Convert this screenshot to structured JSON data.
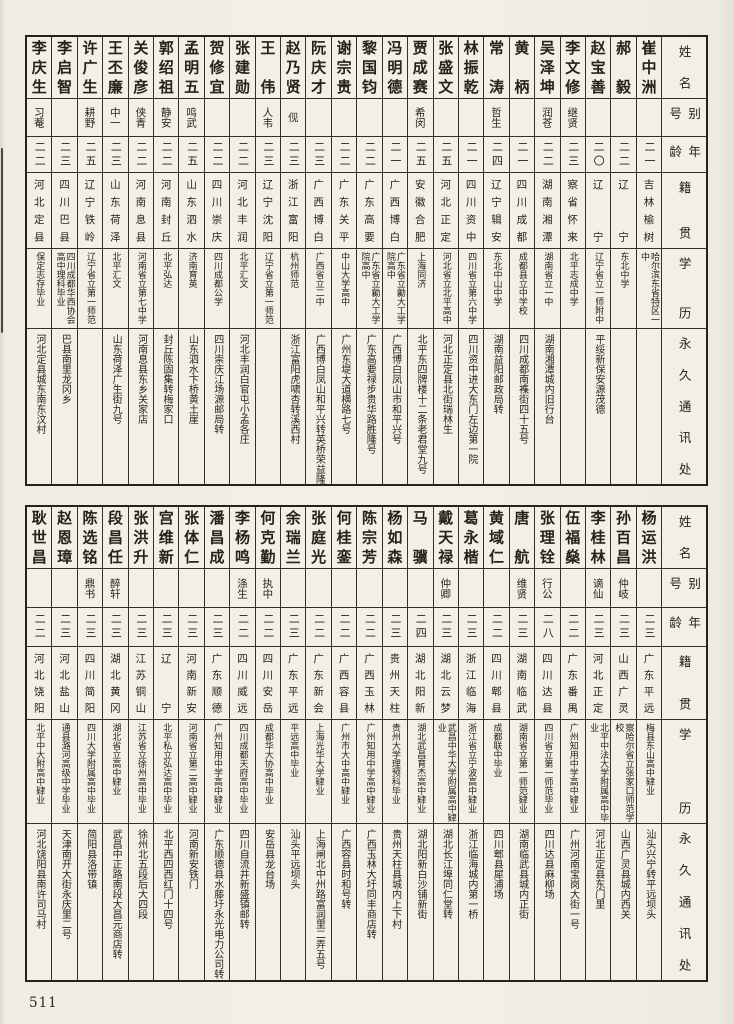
{
  "page": {
    "number": "511"
  },
  "row_labels": [
    "姓名",
    "别号",
    "年龄",
    "籍贯",
    "学历",
    "永久通讯处"
  ],
  "tables": [
    {
      "people": [
        {
          "name": "李庆生",
          "alias": "习菴",
          "age": "二二",
          "native": "河北定县",
          "education": "保定志存毕业",
          "address": "河北定县城东南东汶村"
        },
        {
          "name": "李启智",
          "alias": "",
          "age": "二三",
          "native": "四川巴县",
          "education": "四川成都华西协会高中理科毕业",
          "address": "巴县南里龙冈乡"
        },
        {
          "name": "许广生",
          "alias": "耕野",
          "age": "二五",
          "native": "辽宁铁岭",
          "education": "辽宁省立第一师范",
          "address": ""
        },
        {
          "name": "王丕廉",
          "alias": "中一",
          "age": "二三",
          "native": "山东荷泽",
          "education": "北平汇文",
          "address": "山东荷泽广生街九号"
        },
        {
          "name": "关俊彦",
          "alias": "侠青",
          "age": "二二",
          "native": "河南息县",
          "education": "河南省立第七中学",
          "address": "河南息县东乡关家店"
        },
        {
          "name": "郭绍祖",
          "alias": "静安",
          "age": "二二",
          "native": "河南封丘",
          "education": "北平弘达",
          "address": "封丘陈固集转梅家口"
        },
        {
          "name": "孟明五",
          "alias": "鸣武",
          "age": "二五",
          "native": "山东泗水",
          "education": "济南育英",
          "address": "山东泗水卞桥黄土崖"
        },
        {
          "name": "贺修宜",
          "alias": "",
          "age": "二二",
          "native": "四川崇庆",
          "education": "四川成都公学",
          "address": "四川崇庆江场源邮局转"
        },
        {
          "name": "张建勋",
          "alias": "",
          "age": "二二",
          "native": "河北丰润",
          "education": "北平汇文",
          "address": "河北丰润白官屯小孟各庄"
        },
        {
          "name": "王伟",
          "alias": "人韦",
          "age": "二三",
          "native": "辽宁沈阳",
          "education": "辽宁省立第一师范",
          "address": ""
        },
        {
          "name": "赵乃贤",
          "alias": "伣",
          "age": "二三",
          "native": "浙江富阳",
          "education": "杭州师范",
          "address": "浙江富阳虎啸杏转溪西村"
        },
        {
          "name": "阮庆才",
          "alias": "",
          "age": "二三",
          "native": "广西博白",
          "education": "广西省立二中",
          "address": "广西博白凤山和平兴转英桥荣益隆"
        },
        {
          "name": "谢宗贵",
          "alias": "",
          "age": "二二",
          "native": "广东关平",
          "education": "中山大学高中",
          "address": "广州东堤大道横路七号"
        },
        {
          "name": "黎国钧",
          "alias": "",
          "age": "二二",
          "native": "广东高要",
          "education": "广东省立勷大工学院高中",
          "address": "广东高要禄步贵华路胜隆号"
        },
        {
          "name": "冯明德",
          "alias": "",
          "age": "二一",
          "native": "广西博白",
          "education": "广东省立勷大工学院高中",
          "address": "广西博白凤山市和平兴号"
        },
        {
          "name": "贾成赛",
          "alias": "希闵",
          "age": "二五",
          "native": "安徽合肥",
          "education": "上海同济",
          "address": "北平东四牌楼十二条老君堂九号"
        },
        {
          "name": "张盛文",
          "alias": "",
          "age": "二五",
          "native": "河北正定",
          "education": "河北省立北平高中",
          "address": "河北正定县北街瑞林生"
        },
        {
          "name": "林振乾",
          "alias": "",
          "age": "二一",
          "native": "四川资中",
          "education": "四川省立第六中学",
          "address": "四川资中进大东门左边第一院"
        },
        {
          "name": "常涛",
          "alias": "哲生",
          "age": "二四",
          "native": "辽宁辑安",
          "education": "东北中山中学",
          "address": "湖南益阳邮政局转"
        },
        {
          "name": "黄柄",
          "alias": "",
          "age": "二一",
          "native": "四川成都",
          "education": "成都县立中学校",
          "address": "四川成都南襍街四十五号"
        },
        {
          "name": "吴泽坤",
          "alias": "润苍",
          "age": "二二",
          "native": "湖南湘潭",
          "education": "湖南省立一中",
          "address": "湖南湘潭城内旧行台"
        },
        {
          "name": "李文修",
          "alias": "继贤",
          "age": "二三",
          "native": "察省怀来",
          "education": "北平志成中学",
          "address": ""
        },
        {
          "name": "赵宝善",
          "alias": "",
          "age": "二〇",
          "native": "辽宁",
          "education": "辽宁省立一师附中",
          "address": "平绥新保安源茂德"
        },
        {
          "name": "郝毅",
          "alias": "",
          "age": "二二",
          "native": "辽宁",
          "education": "东北中学",
          "address": ""
        },
        {
          "name": "崔中洲",
          "alias": "",
          "age": "二一",
          "native": "吉林榆树",
          "education": "哈尔滨东省特区一中",
          "address": ""
        }
      ]
    },
    {
      "people": [
        {
          "name": "耿世昌",
          "alias": "",
          "age": "二二",
          "native": "河北饶阳",
          "education": "北平中大附高中肄业",
          "address": "河北饶阳县南许司马村"
        },
        {
          "name": "赵恩璋",
          "alias": "",
          "age": "二三",
          "native": "河北盐山",
          "education": "通县潞河高级中学毕业",
          "address": "天津南开大街永庆里二号"
        },
        {
          "name": "陈选铭",
          "alias": "鼎书",
          "age": "二三",
          "native": "四川简阳",
          "education": "四川大学附属高中毕业",
          "address": "简阳县洛带镇"
        },
        {
          "name": "段昌任",
          "alias": "醉轩",
          "age": "二三",
          "native": "湖北黄冈",
          "education": "湖北省立高中肄业",
          "address": "武昌中正路南段大昌元商店转"
        },
        {
          "name": "张洪升",
          "alias": "",
          "age": "二三",
          "native": "江苏铜山",
          "education": "江苏省立徐州高中毕业",
          "address": "徐州北五段后大四段"
        },
        {
          "name": "宫维新",
          "alias": "",
          "age": "二三",
          "native": "辽宁",
          "education": "北平私立弘达高中毕业",
          "address": "北平西四西红门十四号"
        },
        {
          "name": "张体仁",
          "alias": "",
          "age": "二三",
          "native": "河南新安",
          "education": "河南省立第二高中肄业",
          "address": "河南新安铁门"
        },
        {
          "name": "潘昌成",
          "alias": "",
          "age": "二三",
          "native": "广东顺德",
          "education": "广州知用中学高中肄业",
          "address": "广东顺德县水藤圩永光电力公司转"
        },
        {
          "name": "李杨鸣",
          "alias": "涤生",
          "age": "二二",
          "native": "四川威远",
          "education": "四川成都天府高中毕业",
          "address": "四川自流井新盛镇邮转"
        },
        {
          "name": "何克勤",
          "alias": "执中",
          "age": "二二",
          "native": "四川安岳",
          "education": "成都华大协高中毕业",
          "address": "安岳县龙台场"
        },
        {
          "name": "余瑞兰",
          "alias": "",
          "age": "二三",
          "native": "广东平远",
          "education": "平远高中毕业",
          "address": "汕头平远坝头"
        },
        {
          "name": "张庭光",
          "alias": "",
          "age": "二二",
          "native": "广东新会",
          "education": "上海光华大学肄业",
          "address": "上海闸北中州路富润里二弄五号"
        },
        {
          "name": "何桂銮",
          "alias": "",
          "age": "二二",
          "native": "广西容县",
          "education": "广州市大中高中肄业",
          "address": "广西容县时和号转"
        },
        {
          "name": "陈宗芳",
          "alias": "",
          "age": "二二",
          "native": "广西玉林",
          "education": "广州知用中学高中肄业",
          "address": "广西玉林大圩同丰商店转"
        },
        {
          "name": "杨如森",
          "alias": "",
          "age": "二三",
          "native": "贵州天柱",
          "education": "贵州大学理预科毕业",
          "address": "贵州天柱县城内上下村"
        },
        {
          "name": "马骥",
          "alias": "",
          "age": "二四",
          "native": "湖北阳新",
          "education": "湖北武昌育杰高中肄业",
          "address": "湖北阳新白沙铺新街"
        },
        {
          "name": "戴天禄",
          "alias": "仲卿",
          "age": "二三",
          "native": "湖北云梦",
          "education": "武昌中华大学附属高中肄业",
          "address": "湖北长江埠同仁堂转"
        },
        {
          "name": "葛永楷",
          "alias": "",
          "age": "二三",
          "native": "浙江临海",
          "education": "浙江省立宁波高中肄业",
          "address": "浙江临海城内第一桥"
        },
        {
          "name": "黄域仁",
          "alias": "",
          "age": "二二",
          "native": "四川郫县",
          "education": "成都联中毕业",
          "address": "四川郫县犀浦场"
        },
        {
          "name": "唐航",
          "alias": "维贤",
          "age": "二三",
          "native": "湖南临武",
          "education": "湖南省立第一师范肄业",
          "address": "湖南临武县城内正街"
        },
        {
          "name": "张理铨",
          "alias": "行公",
          "age": "二八",
          "native": "四川达县",
          "education": "四川省立第一师范毕业",
          "address": "四川达县麻柳场"
        },
        {
          "name": "伍福燊",
          "alias": "",
          "age": "二二",
          "native": "广东番禺",
          "education": "广州知用中学高中肄业",
          "address": "广州河南宝岗大街一号"
        },
        {
          "name": "李桂林",
          "alias": "谪仙",
          "age": "二三",
          "native": "河北正定",
          "education": "北平中法大学附属高中毕业",
          "address": "河北正定县东门里"
        },
        {
          "name": "孙百昌",
          "alias": "仲岐",
          "age": "二三",
          "native": "山西广灵",
          "education": "察哈尔省立张家口师范学校",
          "address": "山西广灵县城内西关"
        },
        {
          "name": "杨运洪",
          "alias": "",
          "age": "二三",
          "native": "广东平远",
          "education": "梅县东山高中肄业",
          "address": "汕头兴宁转平远坝头"
        }
      ]
    }
  ]
}
